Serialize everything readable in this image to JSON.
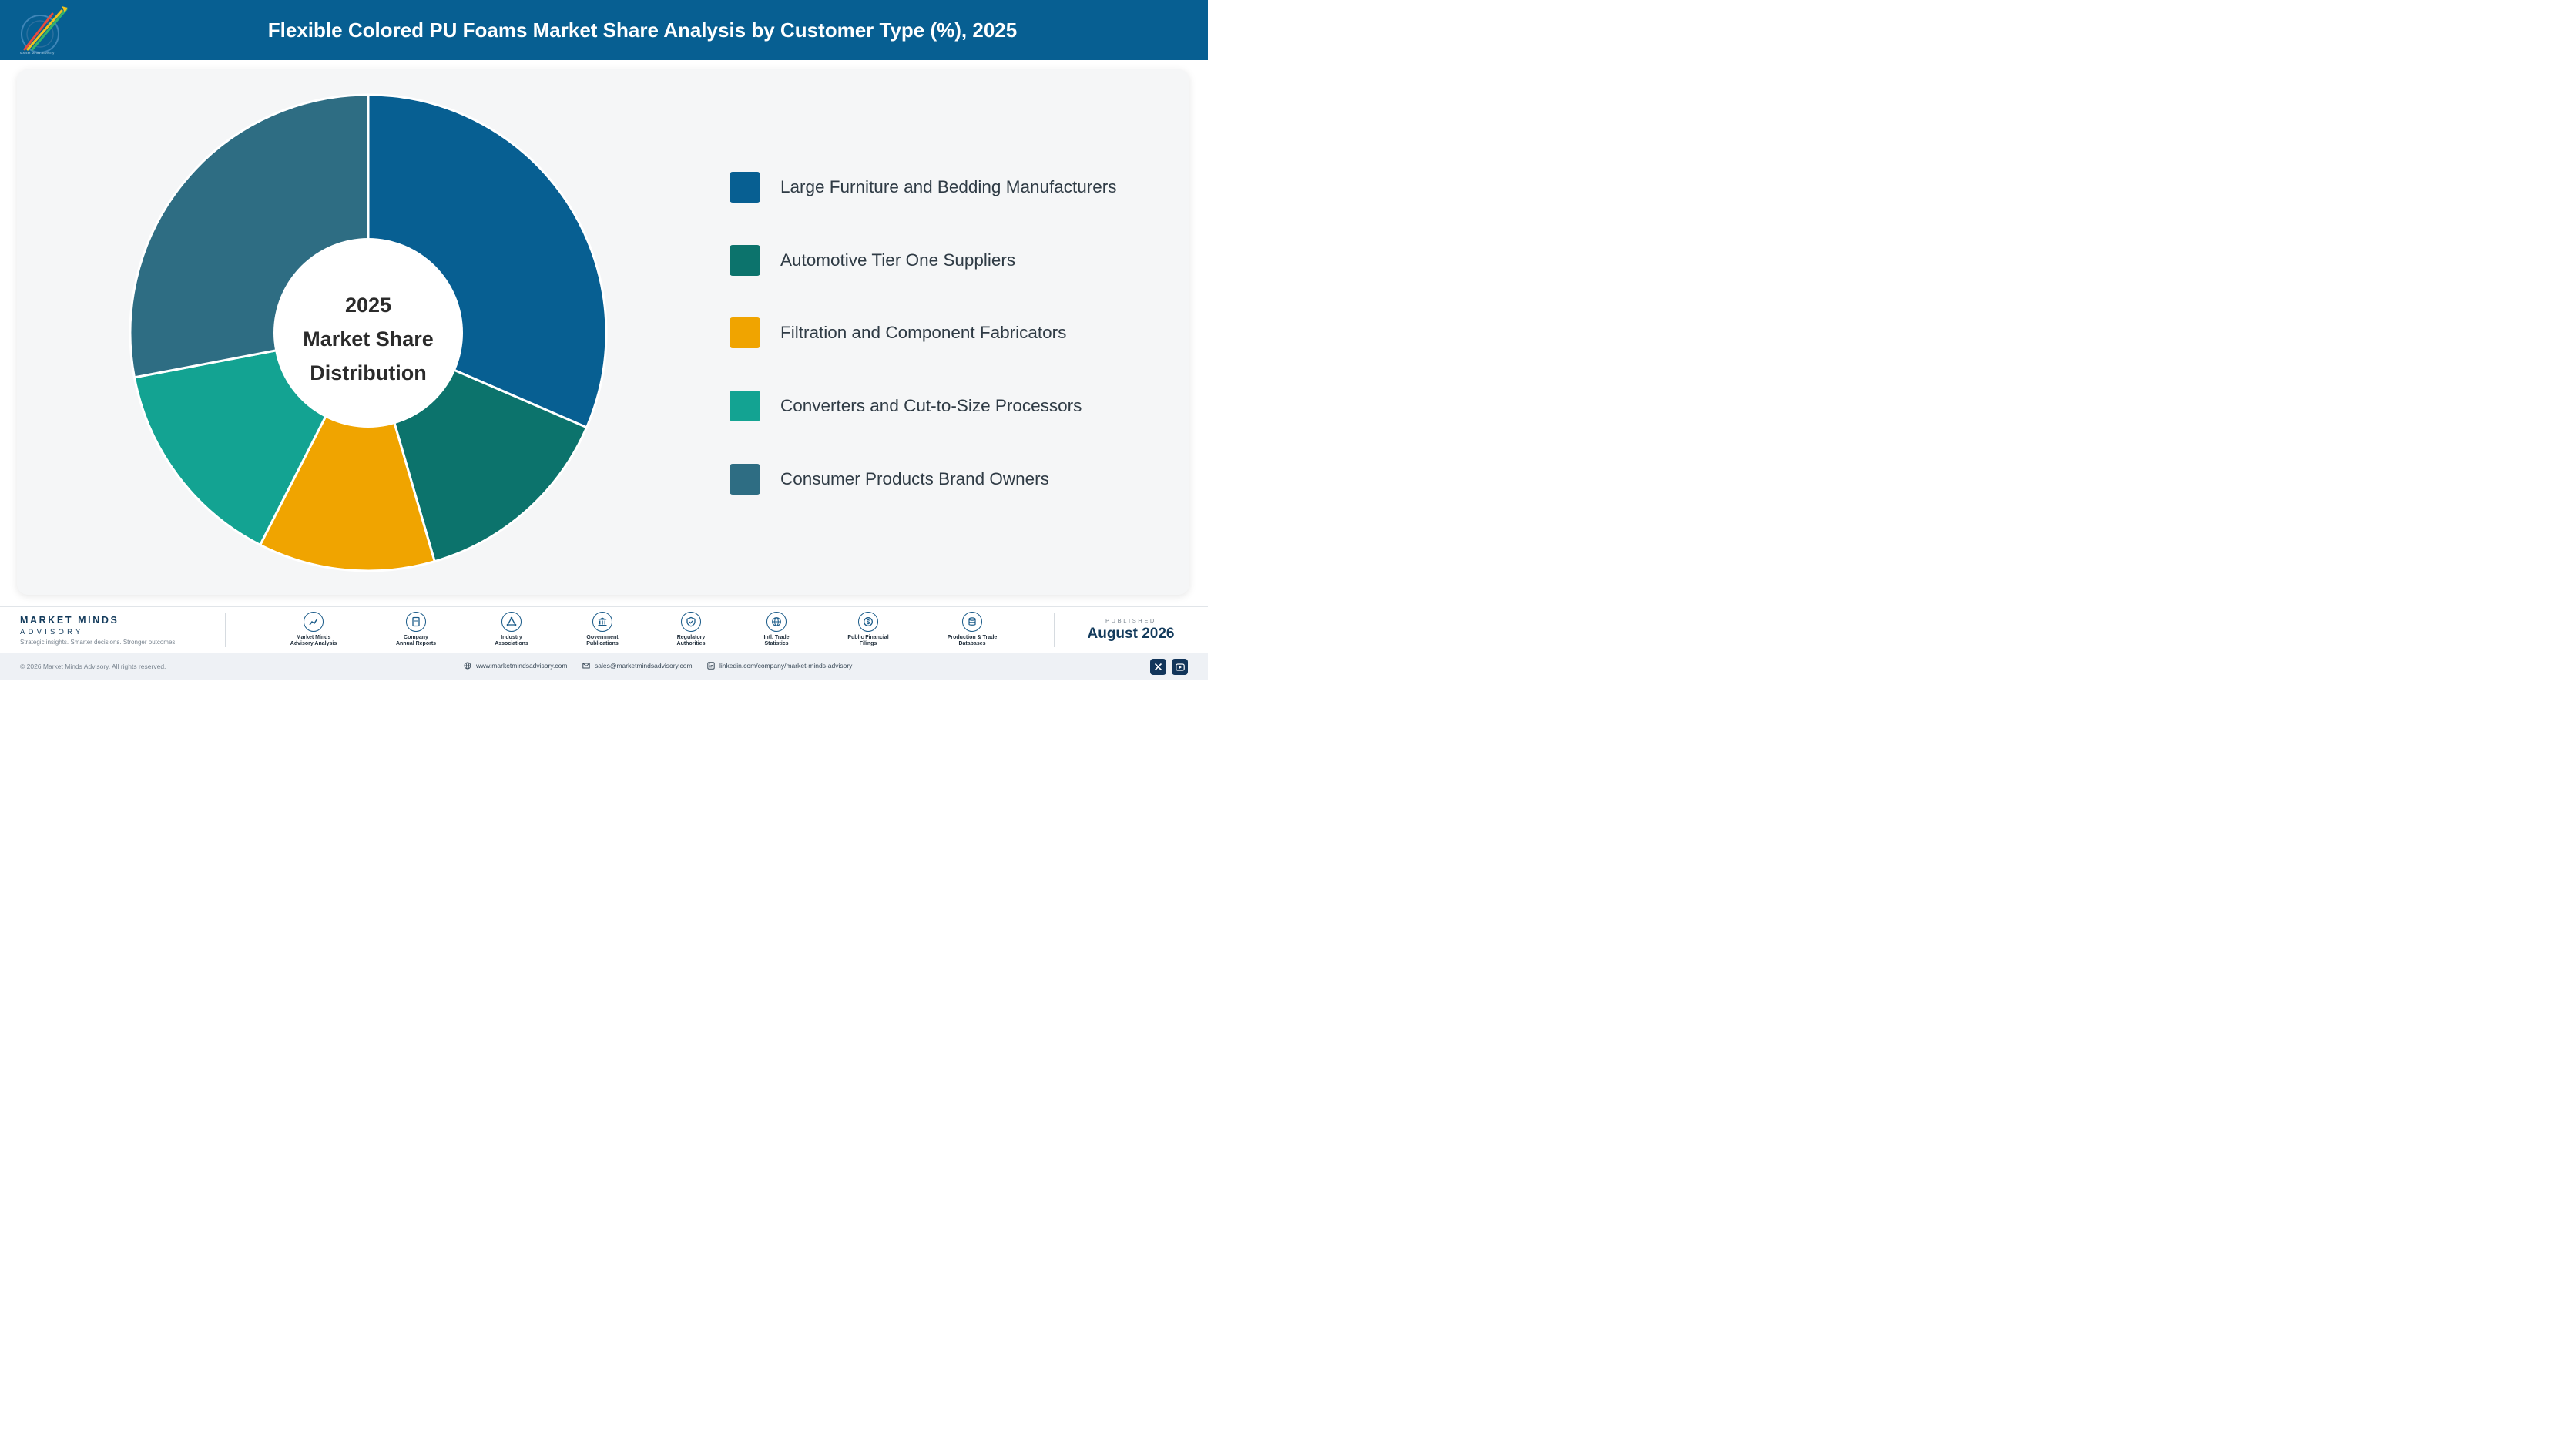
{
  "header": {
    "title": "Flexible Colored PU Foams Market Share Analysis by Customer Type (%), 2025",
    "logo_caption": "Market Minds Advisory"
  },
  "chart_data": {
    "type": "pie",
    "title": "Flexible Colored PU Foams Market Share Analysis by Customer Type (%), 2025",
    "center_label": [
      "2025",
      "Market Share",
      "Distribution"
    ],
    "categories": [
      "Large Furniture and Bedding Manufacturers",
      "Automotive Tier One Suppliers",
      "Filtration and Component Fabricators",
      "Converters and Cut-to-Size Processors",
      "Consumer Products Brand Owners"
    ],
    "values": [
      31.5,
      14.0,
      12.0,
      14.5,
      28.0
    ],
    "colors": [
      "#075f92",
      "#0c736c",
      "#f0a400",
      "#13a392",
      "#2e6d83"
    ],
    "legend_position": "right",
    "donut": true
  },
  "footer": {
    "brand_name": "MARKET MINDS",
    "brand_sub": "ADVISORY",
    "tagline": "Strategic insights. Smarter decisions. Stronger outcomes.",
    "sources": [
      {
        "line1": "Market Minds",
        "line2": "Advisory Analysis",
        "icon": "chart-line-icon"
      },
      {
        "line1": "Company",
        "line2": "Annual Reports",
        "icon": "document-icon"
      },
      {
        "line1": "Industry",
        "line2": "Associations",
        "icon": "network-icon"
      },
      {
        "line1": "Government",
        "line2": "Publications",
        "icon": "building-icon"
      },
      {
        "line1": "Regulatory",
        "line2": "Authorities",
        "icon": "shield-icon"
      },
      {
        "line1": "Intl. Trade",
        "line2": "Statistics",
        "icon": "globe-icon"
      },
      {
        "line1": "Public Financial",
        "line2": "Filings",
        "icon": "coin-icon"
      },
      {
        "line1": "Production & Trade",
        "line2": "Databases",
        "icon": "database-icon"
      }
    ],
    "published_label": "PUBLISHED",
    "published_date": "August 2026"
  },
  "bottombar": {
    "copyright": "© 2026 Market Minds Advisory. All rights reserved.",
    "website": "www.marketmindsadvisory.com",
    "email": "sales@marketmindsadvisory.com",
    "linkedin": "linkedin.com/company/market-minds-advisory"
  }
}
